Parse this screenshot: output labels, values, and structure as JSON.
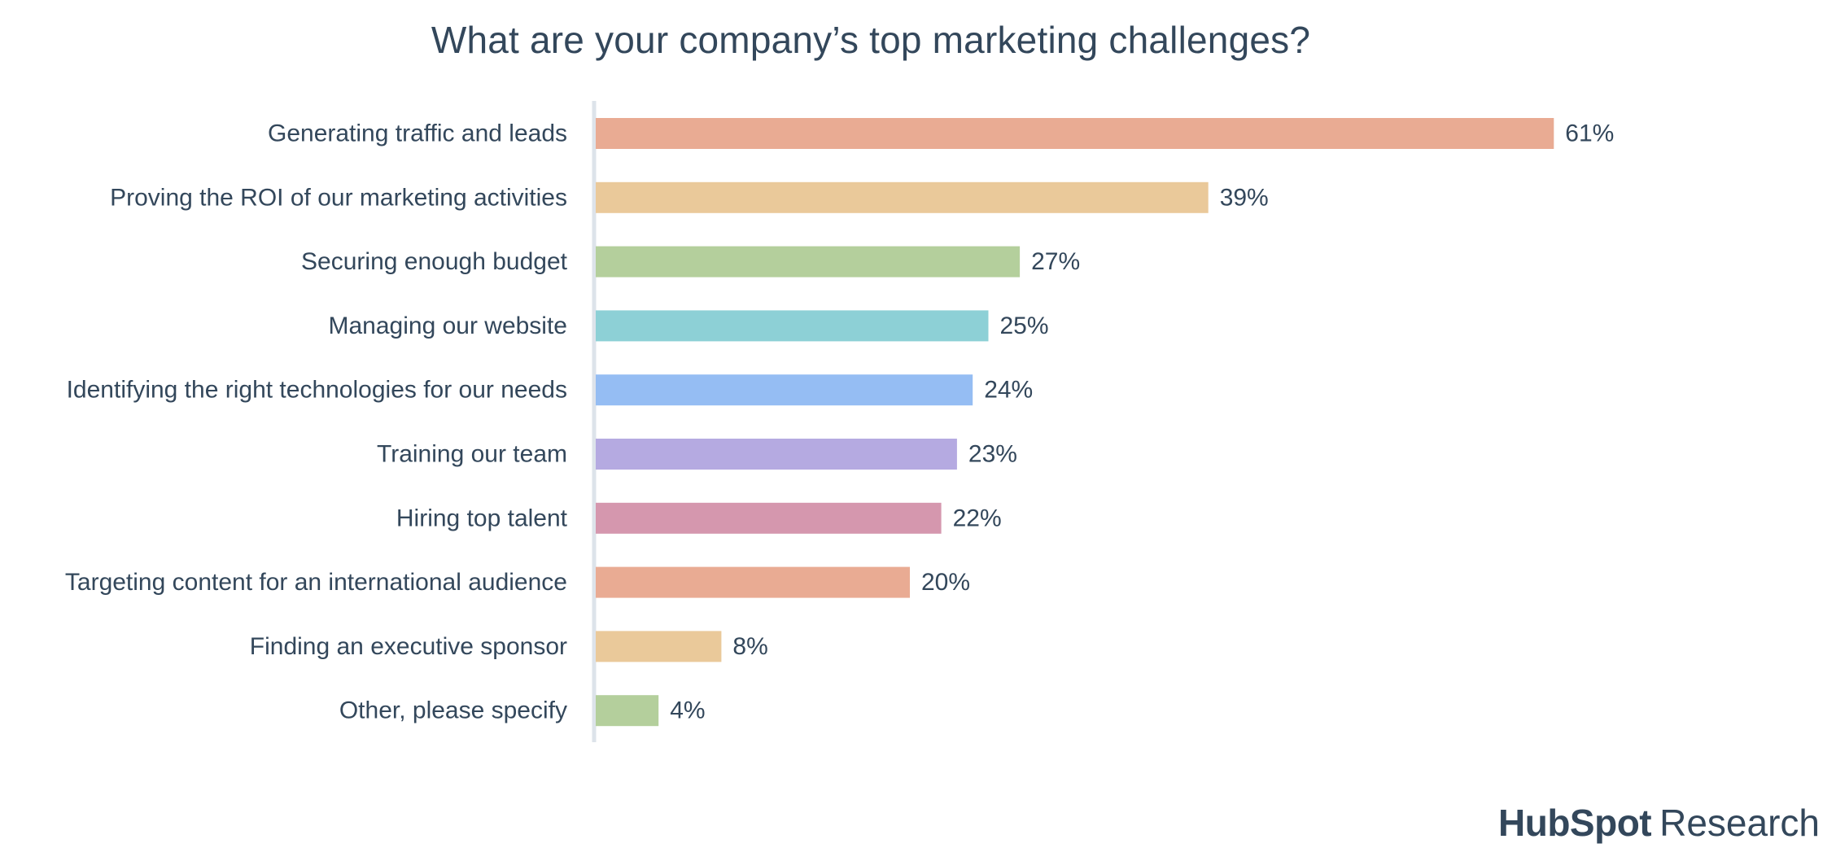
{
  "chart_data": {
    "type": "bar",
    "orientation": "horizontal",
    "title": "What are your company’s top marketing challenges?",
    "categories": [
      "Generating traffic and leads",
      "Proving the ROI of our marketing activities",
      "Securing enough budget",
      "Managing our website",
      "Identifying the right technologies for our needs",
      "Training our team",
      "Hiring top talent",
      "Targeting content for an international audience",
      "Finding an executive sponsor",
      "Other, please specify"
    ],
    "values": [
      61,
      39,
      27,
      25,
      24,
      23,
      22,
      20,
      8,
      4
    ],
    "value_labels": [
      "61%",
      "39%",
      "27%",
      "25%",
      "24%",
      "23%",
      "22%",
      "20%",
      "8%",
      "4%"
    ],
    "unit": "%",
    "colors": [
      "#e9ab93",
      "#eac99a",
      "#b4cf9c",
      "#8dd0d6",
      "#95bdf3",
      "#b5aae1",
      "#d597ae",
      "#e9ab93",
      "#eac99a",
      "#b4cf9c"
    ],
    "axis_color": "#dde3ea",
    "grid": false,
    "legend": "none"
  },
  "brand": {
    "name": "HubSpot",
    "suffix": "Research",
    "color": "#33475b",
    "accent": "#ff7a59"
  }
}
